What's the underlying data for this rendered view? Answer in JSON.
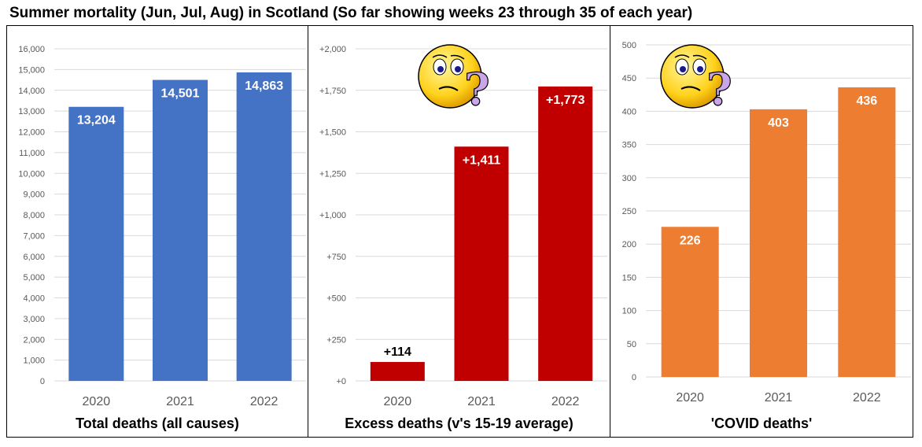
{
  "title": "Summer mortality (Jun, Jul, Aug)  in Scotland (So far showing weeks 23 through 35 of each year)",
  "colors": {
    "total": "#4472C4",
    "excess": "#C00000",
    "covid": "#ED7D31",
    "grid": "#D9D9D9",
    "tick": "#595959"
  },
  "chart_data": [
    {
      "type": "bar",
      "title": "Total deaths (all causes)",
      "categories": [
        "2020",
        "2021",
        "2022"
      ],
      "values": [
        13204,
        14501,
        14863
      ],
      "value_labels": [
        "13,204",
        "14,501",
        "14,863"
      ],
      "ylim": [
        0,
        16000
      ],
      "yticks": [
        0,
        1000,
        2000,
        3000,
        4000,
        5000,
        6000,
        7000,
        8000,
        9000,
        10000,
        11000,
        12000,
        13000,
        14000,
        15000,
        16000
      ],
      "ytick_labels": [
        "0",
        "1,000",
        "2,000",
        "3,000",
        "4,000",
        "5,000",
        "6,000",
        "7,000",
        "8,000",
        "9,000",
        "10,000",
        "11,000",
        "12,000",
        "13,000",
        "14,000",
        "15,000",
        "16,000"
      ],
      "color": "#4472C4",
      "label_position": "inside-top",
      "grid": true
    },
    {
      "type": "bar",
      "title": "Excess deaths (v's 15-19 average)",
      "categories": [
        "2020",
        "2021",
        "2022"
      ],
      "values": [
        114,
        1411,
        1773
      ],
      "value_labels": [
        "+114",
        "+1,411",
        "+1,773"
      ],
      "ylim": [
        0,
        2000
      ],
      "yticks": [
        0,
        250,
        500,
        750,
        1000,
        1250,
        1500,
        1750,
        2000
      ],
      "ytick_labels": [
        "+0",
        "+250",
        "+500",
        "+750",
        "+1,000",
        "+1,250",
        "+1,500",
        "+1,750",
        "+2,000"
      ],
      "color": "#C00000",
      "label_position": "inside-top",
      "grid": true,
      "decoration": "confused-face-icon"
    },
    {
      "type": "bar",
      "title": "'COVID deaths'",
      "categories": [
        "2020",
        "2021",
        "2022"
      ],
      "values": [
        226,
        403,
        436
      ],
      "value_labels": [
        "226",
        "403",
        "436"
      ],
      "ylim": [
        0,
        500
      ],
      "yticks": [
        0,
        50,
        100,
        150,
        200,
        250,
        300,
        350,
        400,
        450,
        500
      ],
      "ytick_labels": [
        "0",
        "50",
        "100",
        "150",
        "200",
        "250",
        "300",
        "350",
        "400",
        "450",
        "500"
      ],
      "color": "#ED7D31",
      "label_position": "inside-top",
      "grid": true,
      "decoration": "confused-face-icon"
    }
  ]
}
